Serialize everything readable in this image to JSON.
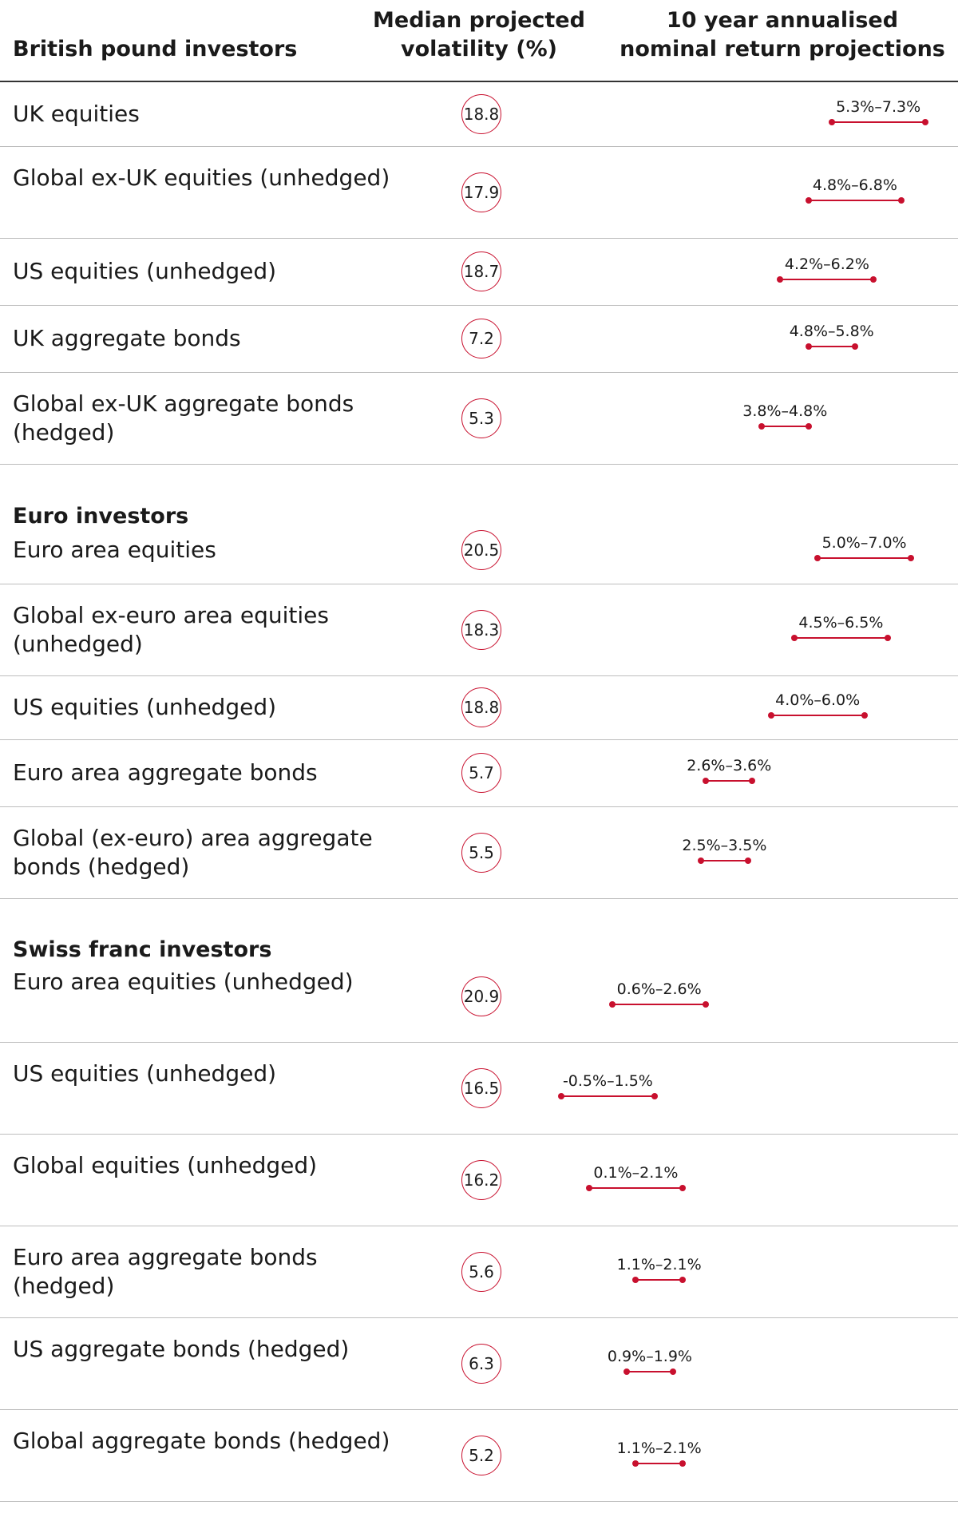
{
  "header": {
    "group_col": "British pound investors",
    "volatility_col": "Median projected volatility (%)",
    "returns_col": "10 year annualised nominal return projections"
  },
  "chart_data": {
    "type": "table",
    "columns": [
      "Median projected volatility (%)",
      "10 year annualised nominal return projections"
    ],
    "groups": [
      {
        "title": "British pound investors",
        "rows": [
          {
            "label": "UK equities",
            "volatility": 18.8,
            "range_low": 5.3,
            "range_high": 7.3,
            "range_label": "5.3%–7.3%"
          },
          {
            "label": "Global ex-UK equities (unhedged)",
            "volatility": 17.9,
            "range_low": 4.8,
            "range_high": 6.8,
            "range_label": "4.8%–6.8%"
          },
          {
            "label": "US equities (unhedged)",
            "volatility": 18.7,
            "range_low": 4.2,
            "range_high": 6.2,
            "range_label": "4.2%–6.2%"
          },
          {
            "label": "UK aggregate bonds",
            "volatility": 7.2,
            "range_low": 4.8,
            "range_high": 5.8,
            "range_label": "4.8%–5.8%"
          },
          {
            "label": "Global ex-UK aggregate bonds (hedged)",
            "volatility": 5.3,
            "range_low": 3.8,
            "range_high": 4.8,
            "range_label": "3.8%–4.8%"
          }
        ]
      },
      {
        "title": "Euro investors",
        "rows": [
          {
            "label": "Euro area equities",
            "volatility": 20.5,
            "range_low": 5.0,
            "range_high": 7.0,
            "range_label": "5.0%–7.0%"
          },
          {
            "label": "Global ex-euro area equities (unhedged)",
            "volatility": 18.3,
            "range_low": 4.5,
            "range_high": 6.5,
            "range_label": "4.5%–6.5%"
          },
          {
            "label": "US equities (unhedged)",
            "volatility": 18.8,
            "range_low": 4.0,
            "range_high": 6.0,
            "range_label": "4.0%–6.0%"
          },
          {
            "label": "Euro area aggregate bonds",
            "volatility": 5.7,
            "range_low": 2.6,
            "range_high": 3.6,
            "range_label": "2.6%–3.6%"
          },
          {
            "label": "Global (ex-euro) area aggregate bonds (hedged)",
            "volatility": 5.5,
            "range_low": 2.5,
            "range_high": 3.5,
            "range_label": "2.5%–3.5%"
          }
        ]
      },
      {
        "title": "Swiss franc investors",
        "rows": [
          {
            "label": "Euro area equities (unhedged)",
            "volatility": 20.9,
            "range_low": 0.6,
            "range_high": 2.6,
            "range_label": "0.6%–2.6%"
          },
          {
            "label": "US equities (unhedged)",
            "volatility": 16.5,
            "range_low": -0.5,
            "range_high": 1.5,
            "range_label": "-0.5%–1.5%"
          },
          {
            "label": "Global equities (unhedged)",
            "volatility": 16.2,
            "range_low": 0.1,
            "range_high": 2.1,
            "range_label": "0.1%–2.1%"
          },
          {
            "label": "Euro area aggregate bonds (hedged)",
            "volatility": 5.6,
            "range_low": 1.1,
            "range_high": 2.1,
            "range_label": "1.1%–2.1%"
          },
          {
            "label": "US aggregate bonds (hedged)",
            "volatility": 6.3,
            "range_low": 0.9,
            "range_high": 1.9,
            "range_label": "0.9%–1.9%"
          },
          {
            "label": "Global aggregate bonds (hedged)",
            "volatility": 5.2,
            "range_low": 1.1,
            "range_high": 2.1,
            "range_label": "1.1%–2.1%"
          }
        ]
      }
    ],
    "colors": {
      "accent": "#c8102e",
      "rule": "#bdbdbd",
      "text": "#1a1a1a"
    }
  }
}
